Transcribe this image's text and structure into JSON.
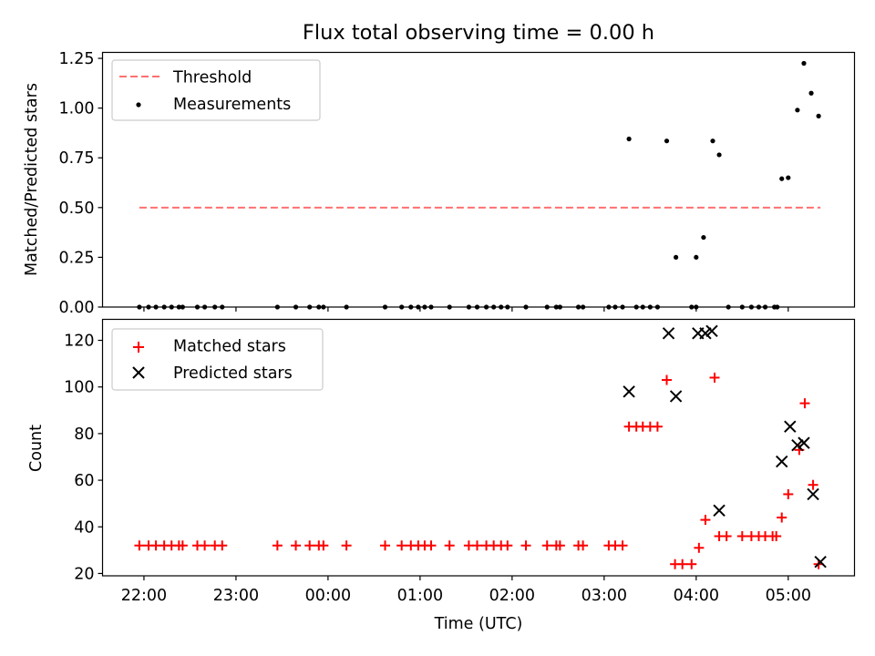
{
  "title": "Flux total observing time = 0.00 h",
  "colors": {
    "threshold": "#ff7070",
    "measurement": "#000000",
    "matched": "#ff0000",
    "predicted": "#000000",
    "axis": "#000000"
  },
  "x_axis": {
    "label": "Time (UTC)",
    "domain": [
      21.55,
      29.72
    ],
    "ticks": [
      {
        "v": 22,
        "label": "22:00"
      },
      {
        "v": 23,
        "label": "23:00"
      },
      {
        "v": 24,
        "label": "00:00"
      },
      {
        "v": 25,
        "label": "01:00"
      },
      {
        "v": 26,
        "label": "02:00"
      },
      {
        "v": 27,
        "label": "03:00"
      },
      {
        "v": 28,
        "label": "04:00"
      },
      {
        "v": 29,
        "label": "05:00"
      }
    ]
  },
  "chart_data": [
    {
      "type": "scatter",
      "panel": "top",
      "ylabel": "Matched/Predicted stars",
      "ylim": [
        0,
        1.28
      ],
      "yticks": [
        {
          "v": 0,
          "label": "0.00"
        },
        {
          "v": 0.25,
          "label": "0.25"
        },
        {
          "v": 0.5,
          "label": "0.50"
        },
        {
          "v": 0.75,
          "label": "0.75"
        },
        {
          "v": 1.0,
          "label": "1.00"
        },
        {
          "v": 1.25,
          "label": "1.25"
        }
      ],
      "legend": {
        "position": "top-left",
        "entries": [
          {
            "label": "Threshold",
            "kind": "dashed-line"
          },
          {
            "label": "Measurements",
            "kind": "dot"
          }
        ]
      },
      "threshold": {
        "name": "Threshold",
        "y": 0.5,
        "x": [
          21.95,
          29.35
        ]
      },
      "series": [
        {
          "name": "Measurements",
          "points": [
            [
              21.95,
              0
            ],
            [
              22.05,
              0
            ],
            [
              22.13,
              0
            ],
            [
              22.22,
              0
            ],
            [
              22.3,
              0
            ],
            [
              22.38,
              0
            ],
            [
              22.42,
              0
            ],
            [
              22.58,
              0
            ],
            [
              22.66,
              0
            ],
            [
              22.77,
              0
            ],
            [
              22.85,
              0
            ],
            [
              23.45,
              0
            ],
            [
              23.65,
              0
            ],
            [
              23.8,
              0
            ],
            [
              23.9,
              0
            ],
            [
              23.95,
              0
            ],
            [
              24.2,
              0
            ],
            [
              24.62,
              0
            ],
            [
              24.8,
              0
            ],
            [
              24.9,
              0
            ],
            [
              24.98,
              0
            ],
            [
              25.05,
              0
            ],
            [
              25.12,
              0
            ],
            [
              25.32,
              0
            ],
            [
              25.53,
              0
            ],
            [
              25.62,
              0
            ],
            [
              25.72,
              0
            ],
            [
              25.8,
              0
            ],
            [
              25.88,
              0
            ],
            [
              25.95,
              0
            ],
            [
              26.15,
              0
            ],
            [
              26.38,
              0
            ],
            [
              26.48,
              0
            ],
            [
              26.52,
              0
            ],
            [
              26.72,
              0
            ],
            [
              26.77,
              0
            ],
            [
              27.05,
              0
            ],
            [
              27.12,
              0
            ],
            [
              27.2,
              0
            ],
            [
              27.35,
              0
            ],
            [
              27.42,
              0
            ],
            [
              27.5,
              0
            ],
            [
              27.58,
              0
            ],
            [
              27.95,
              0
            ],
            [
              28.0,
              0
            ],
            [
              28.35,
              0
            ],
            [
              28.5,
              0
            ],
            [
              28.6,
              0
            ],
            [
              28.68,
              0
            ],
            [
              28.75,
              0
            ],
            [
              28.85,
              0
            ],
            [
              28.88,
              0
            ],
            [
              27.27,
              0.845
            ],
            [
              27.68,
              0.835
            ],
            [
              27.78,
              0.25
            ],
            [
              28.0,
              0.25
            ],
            [
              28.08,
              0.35
            ],
            [
              28.18,
              0.835
            ],
            [
              28.25,
              0.765
            ],
            [
              28.93,
              0.645
            ],
            [
              29.0,
              0.65
            ],
            [
              29.1,
              0.99
            ],
            [
              29.17,
              1.225
            ],
            [
              29.25,
              1.075
            ],
            [
              29.33,
              0.96
            ]
          ]
        }
      ]
    },
    {
      "type": "scatter",
      "panel": "bottom",
      "ylabel": "Count",
      "ylim": [
        19,
        129
      ],
      "yticks": [
        {
          "v": 20,
          "label": "20"
        },
        {
          "v": 40,
          "label": "40"
        },
        {
          "v": 60,
          "label": "60"
        },
        {
          "v": 80,
          "label": "80"
        },
        {
          "v": 100,
          "label": "100"
        },
        {
          "v": 120,
          "label": "120"
        }
      ],
      "legend": {
        "position": "top-left",
        "entries": [
          {
            "label": "Matched stars",
            "kind": "plus"
          },
          {
            "label": "Predicted stars",
            "kind": "cross"
          }
        ]
      },
      "series": [
        {
          "name": "Matched stars",
          "marker": "plus",
          "points": [
            [
              21.95,
              32
            ],
            [
              22.05,
              32
            ],
            [
              22.13,
              32
            ],
            [
              22.22,
              32
            ],
            [
              22.3,
              32
            ],
            [
              22.38,
              32
            ],
            [
              22.42,
              32
            ],
            [
              22.58,
              32
            ],
            [
              22.66,
              32
            ],
            [
              22.77,
              32
            ],
            [
              22.85,
              32
            ],
            [
              23.45,
              32
            ],
            [
              23.65,
              32
            ],
            [
              23.8,
              32
            ],
            [
              23.9,
              32
            ],
            [
              23.95,
              32
            ],
            [
              24.2,
              32
            ],
            [
              24.62,
              32
            ],
            [
              24.8,
              32
            ],
            [
              24.9,
              32
            ],
            [
              24.98,
              32
            ],
            [
              25.05,
              32
            ],
            [
              25.12,
              32
            ],
            [
              25.32,
              32
            ],
            [
              25.53,
              32
            ],
            [
              25.62,
              32
            ],
            [
              25.72,
              32
            ],
            [
              25.8,
              32
            ],
            [
              25.88,
              32
            ],
            [
              25.95,
              32
            ],
            [
              26.15,
              32
            ],
            [
              26.38,
              32
            ],
            [
              26.48,
              32
            ],
            [
              26.52,
              32
            ],
            [
              26.72,
              32
            ],
            [
              26.77,
              32
            ],
            [
              27.05,
              32
            ],
            [
              27.12,
              32
            ],
            [
              27.2,
              32
            ],
            [
              27.27,
              83
            ],
            [
              27.35,
              83
            ],
            [
              27.42,
              83
            ],
            [
              27.5,
              83
            ],
            [
              27.58,
              83
            ],
            [
              27.68,
              103
            ],
            [
              27.77,
              24
            ],
            [
              27.85,
              24
            ],
            [
              27.95,
              24
            ],
            [
              28.03,
              31
            ],
            [
              28.1,
              43
            ],
            [
              28.2,
              104
            ],
            [
              28.25,
              36
            ],
            [
              28.33,
              36
            ],
            [
              28.5,
              36
            ],
            [
              28.6,
              36
            ],
            [
              28.68,
              36
            ],
            [
              28.75,
              36
            ],
            [
              28.83,
              36
            ],
            [
              28.87,
              36
            ],
            [
              28.93,
              44
            ],
            [
              29.0,
              54
            ],
            [
              29.12,
              73
            ],
            [
              29.18,
              93
            ],
            [
              29.27,
              58
            ],
            [
              29.33,
              24
            ]
          ]
        },
        {
          "name": "Predicted stars",
          "marker": "cross",
          "points": [
            [
              27.27,
              98
            ],
            [
              27.7,
              123
            ],
            [
              27.78,
              96
            ],
            [
              28.02,
              123
            ],
            [
              28.1,
              123
            ],
            [
              28.17,
              124
            ],
            [
              28.25,
              47
            ],
            [
              28.93,
              68
            ],
            [
              29.02,
              83
            ],
            [
              29.1,
              75
            ],
            [
              29.17,
              76
            ],
            [
              29.27,
              54
            ],
            [
              29.35,
              25
            ]
          ]
        }
      ]
    }
  ]
}
